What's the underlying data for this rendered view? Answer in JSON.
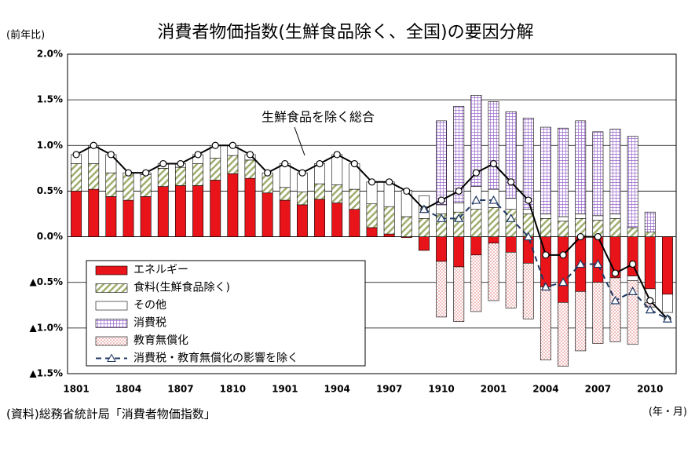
{
  "chart_data": {
    "type": "bar",
    "title": "消費者物価指数(生鮮食品除く、全国)の要因分解",
    "y_unit_label": "(前年比)",
    "x_unit_label": "(年・月)",
    "source": "(資料)総務省統計局「消費者物価指数」",
    "annotation": "生鮮食品を除く総合",
    "categories": [
      "1801",
      null,
      null,
      "1804",
      null,
      null,
      "1807",
      null,
      null,
      "1810",
      null,
      null,
      "1901",
      null,
      null,
      "1904",
      null,
      null,
      "1907",
      null,
      null,
      "1910",
      null,
      null,
      "2001",
      null,
      null,
      "2004",
      null,
      null,
      "2007",
      null,
      null,
      "2010",
      null
    ],
    "ylim": [
      -1.5,
      2.0
    ],
    "yticks": [
      {
        "value": -1.5,
        "label": "▲1.5%"
      },
      {
        "value": -1.0,
        "label": "▲1.0%"
      },
      {
        "value": -0.5,
        "label": "▲0.5%"
      },
      {
        "value": 0,
        "label": "0.0%"
      },
      {
        "value": 0.5,
        "label": "0.5%"
      },
      {
        "value": 1.0,
        "label": "1.0%"
      },
      {
        "value": 1.5,
        "label": "1.5%"
      },
      {
        "value": 2.0,
        "label": "2.0%"
      }
    ],
    "grid": true,
    "series": [
      {
        "name": "エネルギー",
        "type": "bar",
        "color": "#e8141a",
        "pattern": "solid",
        "values": [
          0.5,
          0.52,
          0.44,
          0.4,
          0.44,
          0.55,
          0.56,
          0.56,
          0.62,
          0.69,
          0.64,
          0.48,
          0.4,
          0.35,
          0.41,
          0.37,
          0.3,
          0.1,
          0.03,
          -0.01,
          -0.15,
          -0.27,
          -0.33,
          -0.2,
          -0.07,
          -0.17,
          -0.29,
          -0.55,
          -0.72,
          -0.6,
          -0.5,
          -0.45,
          -0.43,
          -0.57,
          -0.63
        ]
      },
      {
        "name": "食料(生鮮食品除く)",
        "type": "bar",
        "color": "#9fae6e",
        "pattern": "hatch",
        "values": [
          0.3,
          0.28,
          0.26,
          0.3,
          0.24,
          0.2,
          0.2,
          0.24,
          0.24,
          0.2,
          0.2,
          0.22,
          0.14,
          0.14,
          0.17,
          0.2,
          0.22,
          0.26,
          0.3,
          0.22,
          0.2,
          0.25,
          0.27,
          0.3,
          0.32,
          0.3,
          0.25,
          0.2,
          0.17,
          0.2,
          0.18,
          0.2,
          0.1,
          0.05,
          0.0
        ]
      },
      {
        "name": "その他",
        "type": "bar",
        "color": "#ffffff",
        "pattern": "solid",
        "values": [
          0.1,
          0.2,
          0.2,
          0.0,
          0.02,
          0.05,
          0.04,
          0.1,
          0.14,
          0.11,
          0.06,
          0.0,
          0.26,
          0.21,
          0.22,
          0.33,
          0.28,
          0.24,
          0.27,
          0.29,
          0.25,
          0.1,
          0.1,
          0.25,
          0.2,
          0.12,
          0.05,
          0.05,
          0.05,
          0.05,
          0.05,
          0.05,
          -0.05,
          -0.15,
          -0.2
        ]
      },
      {
        "name": "消費税",
        "type": "bar",
        "color": "#9966cc",
        "pattern": "grid",
        "values": [
          null,
          null,
          null,
          null,
          null,
          null,
          null,
          null,
          null,
          null,
          null,
          null,
          null,
          null,
          null,
          null,
          null,
          null,
          null,
          null,
          null,
          0.92,
          1.06,
          1.0,
          0.96,
          0.95,
          1.0,
          0.95,
          0.97,
          1.02,
          0.92,
          0.93,
          1.0,
          0.22,
          null
        ]
      },
      {
        "name": "教育無償化",
        "type": "bar",
        "color": "#e07070",
        "pattern": "dots",
        "values": [
          null,
          null,
          null,
          null,
          null,
          null,
          null,
          null,
          null,
          null,
          null,
          null,
          null,
          null,
          null,
          null,
          null,
          null,
          null,
          null,
          null,
          -0.61,
          -0.6,
          -0.62,
          -0.63,
          -0.61,
          -0.61,
          -0.8,
          -0.7,
          -0.65,
          -0.67,
          -0.7,
          -0.7,
          -0.05,
          null
        ]
      },
      {
        "name": "生鮮食品を除く総合",
        "type": "line",
        "color": "#000000",
        "marker": "circle",
        "dashed": false,
        "in_legend": false,
        "values": [
          0.9,
          1.0,
          0.9,
          0.7,
          0.7,
          0.8,
          0.8,
          0.9,
          1.0,
          1.0,
          0.9,
          0.7,
          0.8,
          0.7,
          0.8,
          0.9,
          0.8,
          0.6,
          0.6,
          0.5,
          0.3,
          0.4,
          0.5,
          0.7,
          0.8,
          0.6,
          0.4,
          -0.2,
          -0.2,
          0.0,
          0.0,
          -0.4,
          -0.3,
          -0.7,
          -0.9
        ]
      },
      {
        "name": "消費税・教育無償化の影響を除く",
        "type": "line",
        "color": "#1f3864",
        "marker": "triangle",
        "dashed": true,
        "values": [
          null,
          null,
          null,
          null,
          null,
          null,
          null,
          null,
          null,
          null,
          null,
          null,
          null,
          null,
          null,
          null,
          null,
          null,
          null,
          null,
          0.3,
          0.2,
          0.2,
          0.4,
          0.4,
          0.2,
          0.0,
          -0.55,
          -0.5,
          -0.3,
          -0.3,
          -0.7,
          -0.6,
          -0.8,
          -0.9
        ]
      }
    ]
  }
}
